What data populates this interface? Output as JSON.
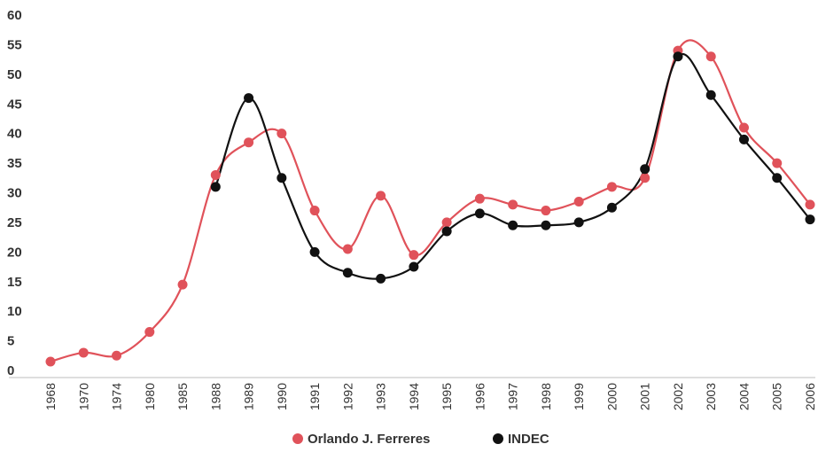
{
  "chart_data": {
    "type": "line",
    "categories": [
      "1968",
      "1970",
      "1974",
      "1980",
      "1985",
      "1988",
      "1989",
      "1990",
      "1991",
      "1992",
      "1993",
      "1994",
      "1995",
      "1996",
      "1997",
      "1998",
      "1999",
      "2000",
      "2001",
      "2002",
      "2003",
      "2004",
      "2005",
      "2006"
    ],
    "series": [
      {
        "name": "Orlando J. Ferreres",
        "color": "#e0525a",
        "values": [
          1.5,
          3.0,
          2.5,
          6.5,
          14.5,
          33.0,
          38.5,
          40.0,
          27.0,
          20.5,
          29.5,
          19.5,
          25.0,
          29.0,
          28.0,
          27.0,
          28.5,
          31.0,
          32.5,
          54.0,
          53.0,
          41.0,
          35.0,
          28.0
        ]
      },
      {
        "name": "INDEC",
        "color": "#111111",
        "values": [
          null,
          null,
          null,
          null,
          null,
          31.0,
          46.0,
          32.5,
          20.0,
          16.5,
          15.5,
          17.5,
          23.5,
          26.5,
          24.5,
          24.5,
          25.0,
          27.5,
          34.0,
          53.0,
          46.5,
          39.0,
          32.5,
          25.5
        ]
      }
    ],
    "yticks": [
      "0",
      "5",
      "10",
      "15",
      "20",
      "25",
      "30",
      "35",
      "40",
      "45",
      "50",
      "55",
      "60"
    ],
    "ylim": [
      0,
      60
    ],
    "grid": false,
    "legend_position": "bottom-center"
  }
}
